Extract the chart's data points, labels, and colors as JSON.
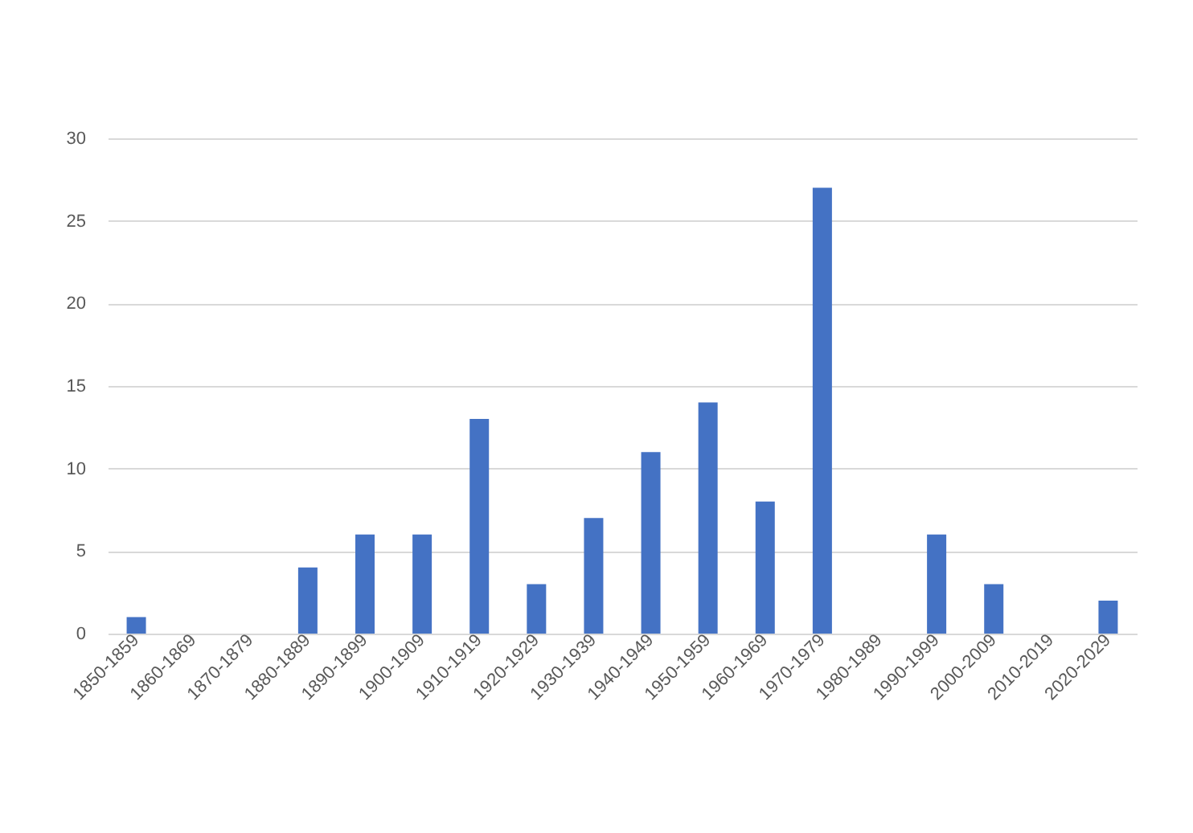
{
  "chart_data": {
    "type": "bar",
    "categories": [
      "1850-1859",
      "1860-1869",
      "1870-1879",
      "1880-1889",
      "1890-1899",
      "1900-1909",
      "1910-1919",
      "1920-1929",
      "1930-1939",
      "1940-1949",
      "1950-1959",
      "1960-1969",
      "1970-1979",
      "1980-1989",
      "1990-1999",
      "2000-2009",
      "2010-2019",
      "2020-2029"
    ],
    "values": [
      1,
      0,
      0,
      4,
      6,
      6,
      13,
      3,
      7,
      11,
      14,
      8,
      27,
      0,
      6,
      3,
      0,
      2
    ],
    "color": "#4472c4",
    "ylim": [
      0,
      30
    ],
    "yticks": [
      0,
      5,
      10,
      15,
      20,
      25,
      30
    ],
    "grid": "y"
  }
}
